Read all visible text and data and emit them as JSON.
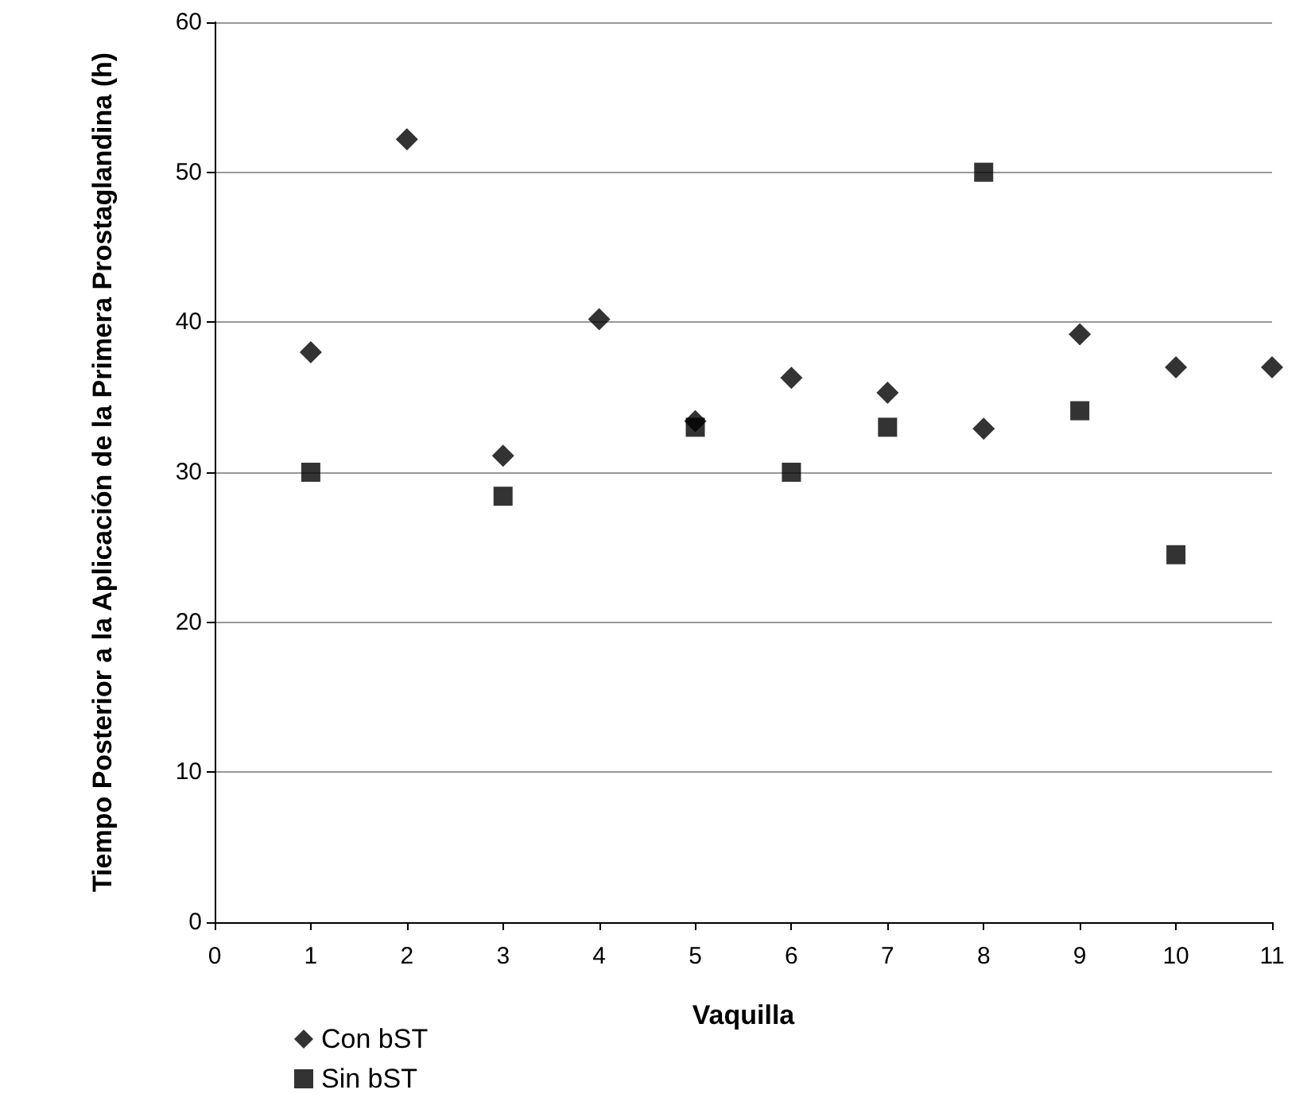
{
  "chart_data": {
    "type": "scatter",
    "xlabel": "Vaquilla",
    "ylabel": "Tiempo Posterior a la Aplicación de la Primera Prostaglandina (h)",
    "xlim": [
      0,
      11
    ],
    "xticks": [
      0,
      1,
      2,
      3,
      4,
      5,
      6,
      7,
      8,
      9,
      10,
      11
    ],
    "ylim": [
      0,
      60
    ],
    "yticks": [
      0,
      10,
      20,
      30,
      40,
      50,
      60
    ],
    "grid": "y",
    "legend": "bottom left",
    "series": [
      {
        "name": "Con bST",
        "color": "#000000",
        "marker": "diamond",
        "x": [
          1,
          2,
          3,
          4,
          5,
          6,
          7,
          8,
          9,
          10,
          11
        ],
        "values": [
          38,
          52.2,
          31.1,
          40.2,
          33.4,
          36.3,
          35.3,
          32.9,
          39.2,
          37,
          37
        ]
      },
      {
        "name": "Sin bST",
        "color": "#000000",
        "marker": "square",
        "x": [
          1,
          3,
          5,
          6,
          7,
          8,
          9,
          10
        ],
        "values": [
          30,
          28.4,
          33,
          30,
          33,
          50,
          34.1,
          24.5
        ]
      }
    ]
  }
}
